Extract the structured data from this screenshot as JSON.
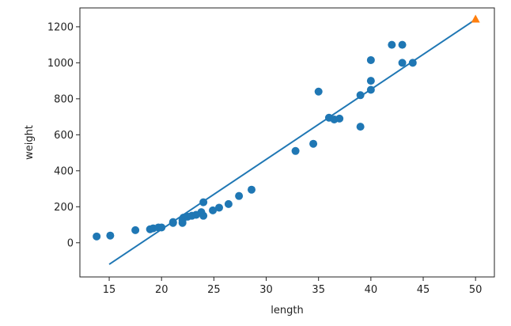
{
  "chart_data": {
    "type": "scatter",
    "xlabel": "length",
    "ylabel": "weight",
    "xlim": [
      12.2,
      51.8
    ],
    "ylim": [
      -190,
      1305
    ],
    "x_ticks": [
      15,
      20,
      25,
      30,
      35,
      40,
      45,
      50
    ],
    "y_ticks": [
      0,
      200,
      400,
      600,
      800,
      1000,
      1200
    ],
    "grid": false,
    "colors": {
      "points": "#1f77b4",
      "line": "#1f77b4",
      "prediction": "#ff7f0e"
    },
    "points": [
      [
        13.8,
        35
      ],
      [
        15.1,
        40
      ],
      [
        17.5,
        70
      ],
      [
        18.9,
        75
      ],
      [
        19.2,
        80
      ],
      [
        19.7,
        85
      ],
      [
        20.0,
        85
      ],
      [
        21.1,
        110
      ],
      [
        21.1,
        115
      ],
      [
        22.0,
        110
      ],
      [
        22.0,
        125
      ],
      [
        22.1,
        140
      ],
      [
        22.5,
        145
      ],
      [
        22.9,
        150
      ],
      [
        23.3,
        155
      ],
      [
        23.8,
        170
      ],
      [
        24.0,
        150
      ],
      [
        24.0,
        225
      ],
      [
        24.9,
        180
      ],
      [
        25.5,
        195
      ],
      [
        26.4,
        215
      ],
      [
        27.4,
        260
      ],
      [
        28.6,
        295
      ],
      [
        32.8,
        510
      ],
      [
        34.5,
        550
      ],
      [
        35.0,
        840
      ],
      [
        36.0,
        695
      ],
      [
        36.5,
        685
      ],
      [
        37.0,
        690
      ],
      [
        39.0,
        645
      ],
      [
        39.0,
        820
      ],
      [
        40.0,
        850
      ],
      [
        40.0,
        900
      ],
      [
        40.0,
        1015
      ],
      [
        42.0,
        1100
      ],
      [
        43.0,
        1100
      ],
      [
        43.0,
        1000
      ],
      [
        44.0,
        1000
      ]
    ],
    "regression_line": {
      "x": [
        15,
        50
      ],
      "y": [
        -120,
        1241
      ]
    },
    "prediction": {
      "x": 50,
      "y": 1241
    }
  }
}
